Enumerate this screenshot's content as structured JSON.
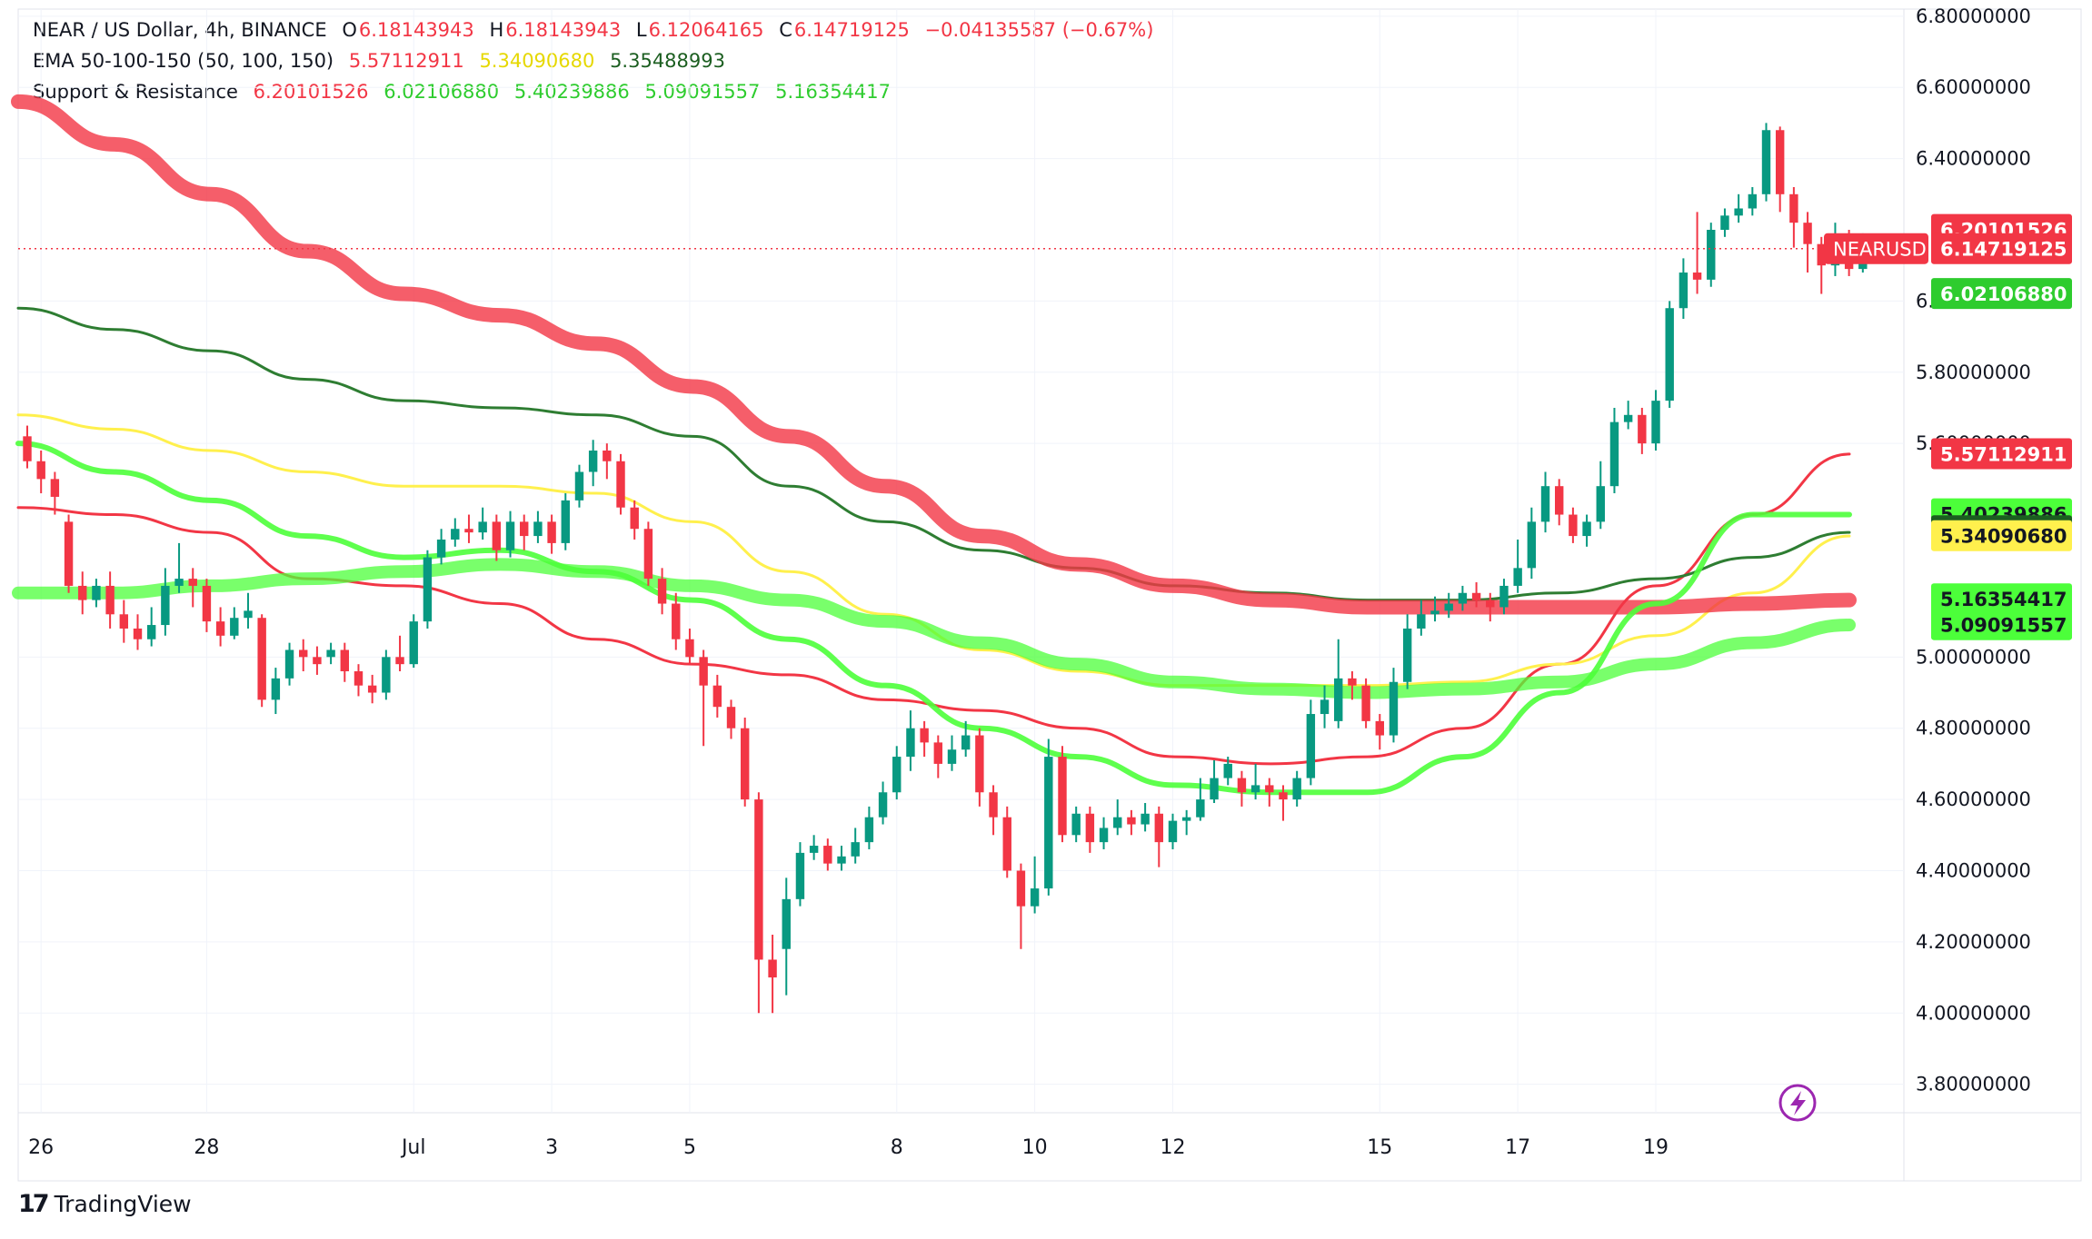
{
  "header": {
    "symbol": "NEAR / US Dollar, 4h, BINANCE",
    "ohlc": {
      "o_label": "O",
      "o": "6.18143943",
      "h_label": "H",
      "h": "6.18143943",
      "l_label": "L",
      "l": "6.12064165",
      "c_label": "C",
      "c": "6.14719125",
      "change": "−0.04135587 (−0.67%)"
    },
    "ema": {
      "label": "EMA 50-100-150 (50, 100, 150)",
      "v1": "5.57112911",
      "v2": "5.34090680",
      "v3": "5.35488993"
    },
    "sr": {
      "label": "Support & Resistance",
      "v1": "6.20101526",
      "v2": "6.02106880",
      "v3": "5.40239886",
      "v4": "5.09091557",
      "v5": "5.16354417"
    }
  },
  "logo": {
    "text": "TradingView"
  },
  "colors": {
    "up": "#089981",
    "down": "#f23645",
    "ema50": "#f23645",
    "ema100": "#fff04d",
    "ema150": "#2e7d32",
    "res": "#f23645",
    "sup": "#4cff3a"
  },
  "chart_data": {
    "type": "candlestick",
    "symbol": "NEARUSD",
    "timeframe": "4h",
    "ylim": [
      3.72,
      6.82
    ],
    "y_ticks": [
      3.8,
      4.0,
      4.2,
      4.4,
      4.6,
      4.8,
      5.0,
      5.6,
      5.8,
      6.0,
      6.4,
      6.6,
      6.8
    ],
    "y_tick_labels": [
      "3.80000000",
      "4.00000000",
      "4.20000000",
      "4.40000000",
      "4.60000000",
      "4.80000000",
      "5.00000000",
      "5.60000000",
      "5.80000000",
      "6.00000000",
      "6.40000000",
      "6.60000000",
      "6.80000000"
    ],
    "x_ticks": [
      {
        "label": "26",
        "bar": 1
      },
      {
        "label": "28",
        "bar": 13
      },
      {
        "label": "Jul",
        "bar": 28
      },
      {
        "label": "3",
        "bar": 38
      },
      {
        "label": "5",
        "bar": 48
      },
      {
        "label": "8",
        "bar": 63
      },
      {
        "label": "10",
        "bar": 73
      },
      {
        "label": "12",
        "bar": 83
      },
      {
        "label": "15",
        "bar": 98
      },
      {
        "label": "17",
        "bar": 108
      },
      {
        "label": "19",
        "bar": 118
      }
    ],
    "candles": [
      [
        5.62,
        5.55,
        5.65,
        5.53
      ],
      [
        5.55,
        5.5,
        5.58,
        5.46
      ],
      [
        5.5,
        5.45,
        5.52,
        5.4
      ],
      [
        5.38,
        5.2,
        5.4,
        5.18
      ],
      [
        5.2,
        5.16,
        5.24,
        5.12
      ],
      [
        5.16,
        5.2,
        5.22,
        5.14
      ],
      [
        5.2,
        5.12,
        5.24,
        5.08
      ],
      [
        5.12,
        5.08,
        5.16,
        5.04
      ],
      [
        5.08,
        5.05,
        5.12,
        5.02
      ],
      [
        5.05,
        5.09,
        5.14,
        5.03
      ],
      [
        5.09,
        5.2,
        5.25,
        5.06
      ],
      [
        5.2,
        5.22,
        5.32,
        5.18
      ],
      [
        5.22,
        5.2,
        5.25,
        5.14
      ],
      [
        5.2,
        5.1,
        5.22,
        5.07
      ],
      [
        5.1,
        5.06,
        5.14,
        5.03
      ],
      [
        5.06,
        5.11,
        5.14,
        5.05
      ],
      [
        5.11,
        5.13,
        5.18,
        5.08
      ],
      [
        5.11,
        4.88,
        5.12,
        4.86
      ],
      [
        4.88,
        4.94,
        4.97,
        4.84
      ],
      [
        4.94,
        5.02,
        5.04,
        4.92
      ],
      [
        5.02,
        5.0,
        5.05,
        4.96
      ],
      [
        5.0,
        4.98,
        5.03,
        4.95
      ],
      [
        5.0,
        5.02,
        5.04,
        4.98
      ],
      [
        5.02,
        4.96,
        5.04,
        4.93
      ],
      [
        4.96,
        4.92,
        4.98,
        4.89
      ],
      [
        4.92,
        4.9,
        4.95,
        4.87
      ],
      [
        4.9,
        5.0,
        5.02,
        4.88
      ],
      [
        5.0,
        4.98,
        5.06,
        4.96
      ],
      [
        4.98,
        5.1,
        5.12,
        4.97
      ],
      [
        5.1,
        5.28,
        5.3,
        5.08
      ],
      [
        5.28,
        5.33,
        5.36,
        5.26
      ],
      [
        5.33,
        5.36,
        5.39,
        5.31
      ],
      [
        5.36,
        5.35,
        5.4,
        5.32
      ],
      [
        5.35,
        5.38,
        5.42,
        5.33
      ],
      [
        5.38,
        5.3,
        5.4,
        5.27
      ],
      [
        5.3,
        5.38,
        5.41,
        5.28
      ],
      [
        5.38,
        5.34,
        5.4,
        5.3
      ],
      [
        5.34,
        5.38,
        5.41,
        5.32
      ],
      [
        5.38,
        5.32,
        5.4,
        5.29
      ],
      [
        5.32,
        5.44,
        5.46,
        5.3
      ],
      [
        5.44,
        5.52,
        5.54,
        5.42
      ],
      [
        5.52,
        5.58,
        5.61,
        5.48
      ],
      [
        5.58,
        5.55,
        5.6,
        5.5
      ],
      [
        5.55,
        5.42,
        5.57,
        5.4
      ],
      [
        5.42,
        5.36,
        5.44,
        5.33
      ],
      [
        5.36,
        5.22,
        5.38,
        5.2
      ],
      [
        5.22,
        5.15,
        5.25,
        5.12
      ],
      [
        5.15,
        5.05,
        5.18,
        5.02
      ],
      [
        5.05,
        5.0,
        5.08,
        4.98
      ],
      [
        5.0,
        4.92,
        5.02,
        4.75
      ],
      [
        4.92,
        4.86,
        4.95,
        4.83
      ],
      [
        4.86,
        4.8,
        4.88,
        4.77
      ],
      [
        4.8,
        4.6,
        4.83,
        4.58
      ],
      [
        4.6,
        4.15,
        4.62,
        4.0
      ],
      [
        4.15,
        4.1,
        4.22,
        4.0
      ],
      [
        4.18,
        4.32,
        4.38,
        4.05
      ],
      [
        4.32,
        4.45,
        4.48,
        4.3
      ],
      [
        4.45,
        4.47,
        4.5,
        4.43
      ],
      [
        4.47,
        4.42,
        4.49,
        4.4
      ],
      [
        4.42,
        4.44,
        4.47,
        4.4
      ],
      [
        4.44,
        4.48,
        4.52,
        4.42
      ],
      [
        4.48,
        4.55,
        4.58,
        4.46
      ],
      [
        4.55,
        4.62,
        4.65,
        4.53
      ],
      [
        4.62,
        4.72,
        4.75,
        4.6
      ],
      [
        4.72,
        4.8,
        4.85,
        4.68
      ],
      [
        4.8,
        4.76,
        4.82,
        4.72
      ],
      [
        4.76,
        4.7,
        4.78,
        4.66
      ],
      [
        4.7,
        4.74,
        4.78,
        4.68
      ],
      [
        4.74,
        4.78,
        4.82,
        4.72
      ],
      [
        4.78,
        4.62,
        4.8,
        4.58
      ],
      [
        4.62,
        4.55,
        4.64,
        4.5
      ],
      [
        4.55,
        4.4,
        4.58,
        4.38
      ],
      [
        4.4,
        4.3,
        4.42,
        4.18
      ],
      [
        4.3,
        4.35,
        4.44,
        4.28
      ],
      [
        4.35,
        4.72,
        4.77,
        4.33
      ],
      [
        4.72,
        4.5,
        4.75,
        4.48
      ],
      [
        4.5,
        4.56,
        4.58,
        4.48
      ],
      [
        4.56,
        4.48,
        4.58,
        4.45
      ],
      [
        4.48,
        4.52,
        4.55,
        4.46
      ],
      [
        4.52,
        4.55,
        4.6,
        4.5
      ],
      [
        4.55,
        4.53,
        4.57,
        4.5
      ],
      [
        4.53,
        4.56,
        4.59,
        4.51
      ],
      [
        4.56,
        4.48,
        4.58,
        4.41
      ],
      [
        4.48,
        4.54,
        4.56,
        4.46
      ],
      [
        4.54,
        4.55,
        4.57,
        4.5
      ],
      [
        4.55,
        4.6,
        4.66,
        4.54
      ],
      [
        4.6,
        4.66,
        4.71,
        4.59
      ],
      [
        4.66,
        4.7,
        4.72,
        4.64
      ],
      [
        4.66,
        4.62,
        4.68,
        4.58
      ],
      [
        4.62,
        4.64,
        4.7,
        4.6
      ],
      [
        4.64,
        4.62,
        4.66,
        4.58
      ],
      [
        4.62,
        4.6,
        4.64,
        4.54
      ],
      [
        4.6,
        4.66,
        4.68,
        4.58
      ],
      [
        4.66,
        4.84,
        4.88,
        4.64
      ],
      [
        4.84,
        4.88,
        4.92,
        4.8
      ],
      [
        4.82,
        4.94,
        5.05,
        4.8
      ],
      [
        4.94,
        4.92,
        4.96,
        4.88
      ],
      [
        4.92,
        4.82,
        4.94,
        4.8
      ],
      [
        4.82,
        4.78,
        4.84,
        4.74
      ],
      [
        4.78,
        4.93,
        4.97,
        4.76
      ],
      [
        4.93,
        5.08,
        5.12,
        4.91
      ],
      [
        5.08,
        5.12,
        5.16,
        5.06
      ],
      [
        5.12,
        5.13,
        5.17,
        5.1
      ],
      [
        5.13,
        5.15,
        5.18,
        5.11
      ],
      [
        5.15,
        5.18,
        5.2,
        5.13
      ],
      [
        5.18,
        5.16,
        5.21,
        5.14
      ],
      [
        5.16,
        5.14,
        5.18,
        5.1
      ],
      [
        5.14,
        5.2,
        5.22,
        5.12
      ],
      [
        5.2,
        5.25,
        5.33,
        5.18
      ],
      [
        5.25,
        5.38,
        5.42,
        5.22
      ],
      [
        5.38,
        5.48,
        5.52,
        5.35
      ],
      [
        5.48,
        5.4,
        5.5,
        5.37
      ],
      [
        5.4,
        5.34,
        5.42,
        5.32
      ],
      [
        5.34,
        5.38,
        5.4,
        5.31
      ],
      [
        5.38,
        5.48,
        5.55,
        5.36
      ],
      [
        5.48,
        5.66,
        5.7,
        5.46
      ],
      [
        5.66,
        5.68,
        5.72,
        5.64
      ],
      [
        5.68,
        5.6,
        5.7,
        5.57
      ],
      [
        5.6,
        5.72,
        5.75,
        5.58
      ],
      [
        5.72,
        5.98,
        6.0,
        5.7
      ],
      [
        5.98,
        6.08,
        6.12,
        5.95
      ],
      [
        6.08,
        6.06,
        6.25,
        6.02
      ],
      [
        6.06,
        6.2,
        6.22,
        6.04
      ],
      [
        6.2,
        6.24,
        6.26,
        6.18
      ],
      [
        6.24,
        6.26,
        6.3,
        6.22
      ],
      [
        6.26,
        6.3,
        6.32,
        6.24
      ],
      [
        6.3,
        6.48,
        6.5,
        6.28
      ],
      [
        6.48,
        6.3,
        6.49,
        6.25
      ],
      [
        6.3,
        6.22,
        6.32,
        6.15
      ],
      [
        6.22,
        6.16,
        6.25,
        6.08
      ],
      [
        6.16,
        6.1,
        6.18,
        6.02
      ],
      [
        6.1,
        6.18,
        6.22,
        6.07
      ],
      [
        6.18,
        6.09,
        6.2,
        6.07
      ],
      [
        6.09,
        6.14,
        6.19,
        6.08
      ],
      [
        6.18,
        6.15,
        6.18,
        6.12
      ]
    ],
    "indicators": [
      {
        "name": "EMA 50",
        "color": "#f23645",
        "values": [
          5.42,
          5.4,
          5.35,
          5.22,
          5.2,
          5.15,
          5.05,
          4.98,
          4.95,
          4.88,
          4.85,
          4.8,
          4.72,
          4.7,
          4.72,
          4.8,
          4.98,
          5.2,
          5.4,
          5.57
        ]
      },
      {
        "name": "EMA 100",
        "color": "#fff04d",
        "values": [
          5.68,
          5.64,
          5.58,
          5.52,
          5.48,
          5.48,
          5.46,
          5.38,
          5.24,
          5.12,
          5.02,
          4.96,
          4.92,
          4.92,
          4.92,
          4.93,
          4.98,
          5.06,
          5.18,
          5.34
        ]
      },
      {
        "name": "EMA 150",
        "color": "#2e7d32",
        "values": [
          5.98,
          5.92,
          5.86,
          5.78,
          5.72,
          5.7,
          5.68,
          5.62,
          5.48,
          5.38,
          5.3,
          5.25,
          5.2,
          5.18,
          5.16,
          5.16,
          5.18,
          5.22,
          5.28,
          5.35
        ]
      },
      {
        "name": "Resistance 1",
        "color": "#f23645",
        "values": [
          6.56,
          6.44,
          6.3,
          6.14,
          6.02,
          5.96,
          5.88,
          5.76,
          5.62,
          5.48,
          5.34,
          5.26,
          5.2,
          5.16,
          5.14,
          5.14,
          5.14,
          5.14,
          5.15,
          5.16
        ]
      },
      {
        "name": "Support 1",
        "color": "#4cff3a",
        "values": [
          5.18,
          5.18,
          5.2,
          5.22,
          5.24,
          5.26,
          5.24,
          5.2,
          5.16,
          5.1,
          5.04,
          4.98,
          4.93,
          4.91,
          4.9,
          4.91,
          4.93,
          4.98,
          5.04,
          5.09
        ]
      },
      {
        "name": "Support 2",
        "color": "#4cff3a",
        "values": [
          5.6,
          5.52,
          5.44,
          5.34,
          5.28,
          5.3,
          5.24,
          5.16,
          5.05,
          4.92,
          4.8,
          4.72,
          4.64,
          4.62,
          4.62,
          4.72,
          4.9,
          5.15,
          5.4,
          5.4
        ]
      }
    ],
    "price_labels": [
      {
        "text": "6.20101526",
        "value": 6.20101526,
        "color": "#f23645"
      },
      {
        "text": "6.14719125",
        "value": 6.14719125,
        "color": "#f23645",
        "tag": "NEARUSD"
      },
      {
        "text": "6.02106880",
        "value": 6.0210688,
        "color": "#2ecc2e"
      },
      {
        "text": "5.57112911",
        "value": 5.57112911,
        "color": "#f23645"
      },
      {
        "text": "5.40239886",
        "value": 5.40239886,
        "color": "#4cff3a"
      },
      {
        "text": "5.35488993",
        "value": 5.35488993,
        "color": "#1b5e20"
      },
      {
        "text": "5.34090680",
        "value": 5.3409068,
        "color": "#fff04d"
      },
      {
        "text": "5.16354417",
        "value": 5.16354417,
        "color": "#4cff3a"
      },
      {
        "text": "5.09091557",
        "value": 5.09091557,
        "color": "#4cff3a"
      }
    ],
    "last_price": 6.14719125
  }
}
